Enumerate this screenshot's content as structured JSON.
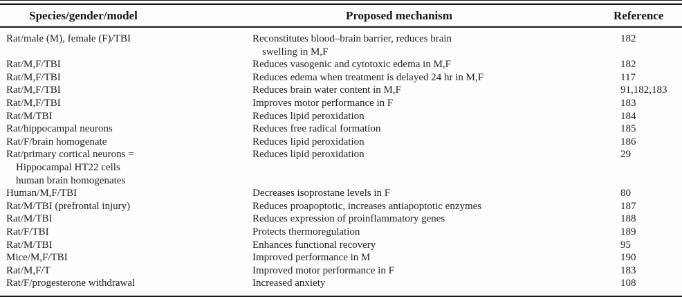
{
  "colors": {
    "ink": "#1e1e1e",
    "background": "#fdfdfb"
  },
  "table": {
    "columns": [
      "Species/gender/model",
      "Proposed mechanism",
      "Reference"
    ],
    "rows": [
      {
        "species": [
          "Rat/male (M), female (F)/TBI"
        ],
        "mechanism": [
          "Reconstitutes blood–brain barrier, reduces brain",
          "swelling in M,F"
        ],
        "reference": "182"
      },
      {
        "species": [
          "Rat/M,F/TBI"
        ],
        "mechanism": [
          "Reduces vasogenic and cytotoxic edema in M,F"
        ],
        "reference": "182"
      },
      {
        "species": [
          "Rat/M,F/TBI"
        ],
        "mechanism": [
          "Reduces edema when treatment is delayed 24 hr in M,F"
        ],
        "reference": "117"
      },
      {
        "species": [
          "Rat/M,F/TBI"
        ],
        "mechanism": [
          "Reduces brain water content in M,F"
        ],
        "reference": "91,182,183"
      },
      {
        "species": [
          "Rat/M,F/TBI"
        ],
        "mechanism": [
          "Improves motor performance in F"
        ],
        "reference": "183"
      },
      {
        "species": [
          "Rat/M/TBI"
        ],
        "mechanism": [
          "Reduces lipid peroxidation"
        ],
        "reference": "184"
      },
      {
        "species": [
          "Rat/hippocampal neurons"
        ],
        "mechanism": [
          "Reduces free radical formation"
        ],
        "reference": "185"
      },
      {
        "species": [
          "Rat/F/brain homogenate"
        ],
        "mechanism": [
          "Reduces lipid peroxidation"
        ],
        "reference": "186"
      },
      {
        "species": [
          "Rat/primary cortical neurons =",
          "Hippocampal HT22 cells",
          "human brain homogenates"
        ],
        "mechanism": [
          "Reduces lipid peroxidation"
        ],
        "reference": "29"
      },
      {
        "species": [
          "Human/M,F/TBI"
        ],
        "mechanism": [
          "Decreases isoprostane levels in F"
        ],
        "reference": "80"
      },
      {
        "species": [
          "Rat/M/TBI (prefrontal injury)"
        ],
        "mechanism": [
          "Reduces proapoptotic, increases antiapoptotic enzymes"
        ],
        "reference": "187"
      },
      {
        "species": [
          "Rat/M/TBI"
        ],
        "mechanism": [
          "Reduces expression of proinflammatory genes"
        ],
        "reference": "188"
      },
      {
        "species": [
          "Rat/F/TBI"
        ],
        "mechanism": [
          "Protects thermoregulation"
        ],
        "reference": "189"
      },
      {
        "species": [
          "Rat/M/TBI"
        ],
        "mechanism": [
          "Enhances functional recovery"
        ],
        "reference": "95"
      },
      {
        "species": [
          "Mice/M,F/TBI"
        ],
        "mechanism": [
          "Improved performance in M"
        ],
        "reference": "190"
      },
      {
        "species": [
          "Rat/M,F/T"
        ],
        "mechanism": [
          "Improved motor performance in F"
        ],
        "reference": "183"
      },
      {
        "species": [
          "Rat/F/progesterone withdrawal"
        ],
        "mechanism": [
          "Increased anxiety"
        ],
        "reference": "108"
      }
    ]
  }
}
